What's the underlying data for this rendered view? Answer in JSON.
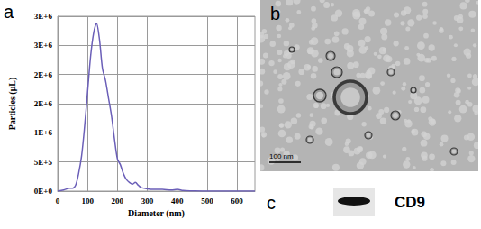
{
  "chart_data": {
    "type": "line",
    "xlabel": "Diameter (nm)",
    "ylabel": "Particles (μL)",
    "x": [
      0,
      20,
      40,
      50,
      60,
      70,
      80,
      90,
      100,
      110,
      120,
      130,
      140,
      150,
      160,
      170,
      180,
      190,
      200,
      210,
      220,
      230,
      240,
      250,
      260,
      270,
      280,
      300,
      320,
      350,
      380,
      400,
      420,
      450,
      500,
      600,
      660
    ],
    "values": [
      0,
      20000,
      50000,
      50000,
      100000,
      300000,
      600000,
      1100000,
      1700000,
      2300000,
      2700000,
      2880000,
      2600000,
      2100000,
      1900000,
      1600000,
      1300000,
      900000,
      550000,
      450000,
      300000,
      200000,
      150000,
      120000,
      150000,
      100000,
      60000,
      40000,
      30000,
      30000,
      20000,
      30000,
      10000,
      5000,
      0,
      0,
      0
    ],
    "color": "#6b5fb8",
    "xlim": [
      0,
      660
    ],
    "xticks": [
      0,
      100,
      200,
      300,
      400,
      500,
      600
    ],
    "ylim": [
      0,
      3000000
    ],
    "yticks": [
      {
        "value": 0,
        "label": "0E+0"
      },
      {
        "value": 500000,
        "label": "5E+5"
      },
      {
        "value": 1000000,
        "label": "1E+6"
      },
      {
        "value": 1500000,
        "label": "2E+6"
      },
      {
        "value": 2000000,
        "label": "2E+6"
      },
      {
        "value": 2500000,
        "label": "3E+6"
      },
      {
        "value": 3000000,
        "label": "3E+6"
      }
    ],
    "grid": true
  },
  "panel_labels": [
    "a",
    "b",
    "c"
  ],
  "tem_image": {
    "scale_bar": "100 nm"
  },
  "blot": {
    "label": "CD9"
  }
}
